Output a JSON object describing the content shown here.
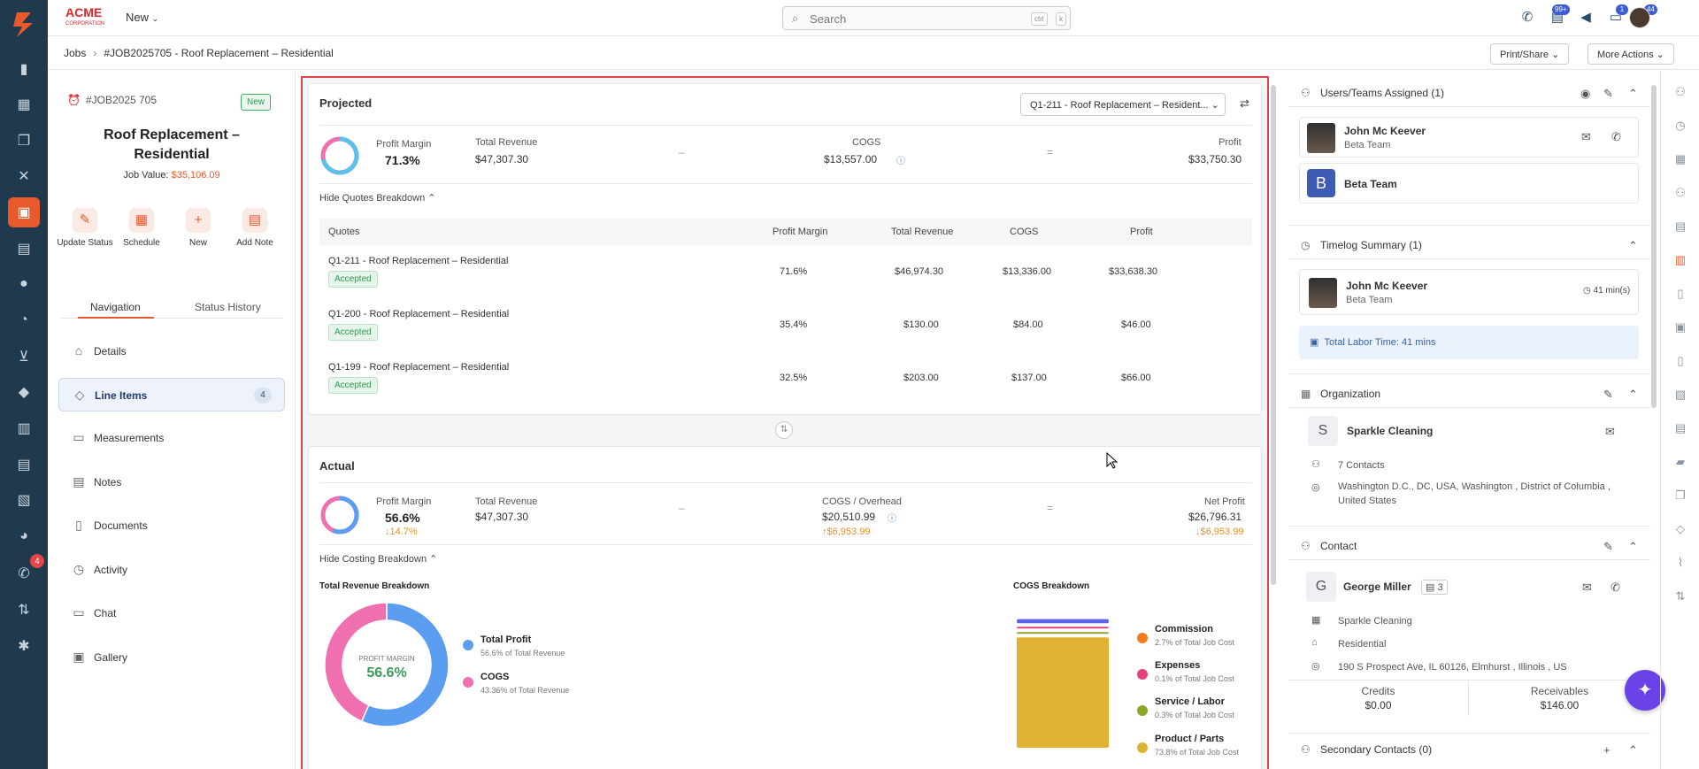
{
  "brand": {
    "name": "ACME",
    "sub": "CORPORATION"
  },
  "topbar": {
    "new_label": "New",
    "search_placeholder": "Search",
    "kbd1": "ctrl",
    "kbd2": "k",
    "badges": {
      "inbox": "99+",
      "messages": "1",
      "notifications": "44"
    }
  },
  "rail": {
    "badge": "4"
  },
  "breadcrumb": {
    "root": "Jobs",
    "current": "#JOB2025705 - Roof Replacement – Residential"
  },
  "header_buttons": {
    "print": "Print/Share",
    "more": "More Actions"
  },
  "job": {
    "number": "#JOB2025 705",
    "status": "New",
    "title": "Roof Replacement – Residential",
    "value_label": "Job Value:",
    "value": "$35,106.09",
    "actions": [
      {
        "label": "Update Status",
        "icon": "pencil-icon"
      },
      {
        "label": "Schedule",
        "icon": "calendar-icon"
      },
      {
        "label": "New",
        "icon": "plus-icon"
      },
      {
        "label": "Add Note",
        "icon": "note-icon"
      }
    ]
  },
  "tabs": {
    "navigation": "Navigation",
    "history": "Status History"
  },
  "nav": [
    {
      "label": "Details",
      "icon": "home-icon"
    },
    {
      "label": "Line Items",
      "icon": "tag-icon",
      "count": "4"
    },
    {
      "label": "Measurements",
      "icon": "ruler-icon"
    },
    {
      "label": "Notes",
      "icon": "notes-icon"
    },
    {
      "label": "Documents",
      "icon": "documents-icon"
    },
    {
      "label": "Activity",
      "icon": "activity-icon"
    },
    {
      "label": "Chat",
      "icon": "chat-icon"
    },
    {
      "label": "Gallery",
      "icon": "gallery-icon"
    }
  ],
  "projected": {
    "title": "Projected",
    "quote_select": "Q1-211 - Roof Replacement – Resident...",
    "profit_margin_label": "Profit Margin",
    "profit_margin": "71.3%",
    "revenue_label": "Total Revenue",
    "revenue": "$47,307.30",
    "minus": "–",
    "cogs_label": "COGS",
    "cogs": "$13,557.00",
    "equals": "=",
    "profit_label": "Profit",
    "profit": "$33,750.30",
    "hide_link": "Hide Quotes Breakdown",
    "table_headers": [
      "Quotes",
      "Profit Margin",
      "Total Revenue",
      "COGS",
      "Profit"
    ],
    "rows": [
      {
        "name": "Q1-211 - Roof Replacement – Residential",
        "status": "Accepted",
        "margin": "71.6%",
        "revenue": "$46,974.30",
        "cogs": "$13,336.00",
        "profit": "$33,638.30"
      },
      {
        "name": "Q1-200 - Roof Replacement – Residential",
        "status": "Accepted",
        "margin": "35.4%",
        "revenue": "$130.00",
        "cogs": "$84.00",
        "profit": "$46.00"
      },
      {
        "name": "Q1-199 - Roof Replacement – Residential",
        "status": "Accepted",
        "margin": "32.5%",
        "revenue": "$203.00",
        "cogs": "$137.00",
        "profit": "$66.00"
      }
    ]
  },
  "actual": {
    "title": "Actual",
    "profit_margin_label": "Profit Margin",
    "profit_margin": "56.6%",
    "margin_delta": "↓14.7%",
    "revenue_label": "Total Revenue",
    "revenue": "$47,307.30",
    "minus": "–",
    "cogs_label": "COGS / Overhead",
    "cogs": "$20,510.99",
    "cogs_delta": "↑$6,953.99",
    "equals": "=",
    "profit_label": "Net Profit",
    "profit": "$26,796.31",
    "profit_delta": "↓$6,953.99",
    "hide_link": "Hide Costing Breakdown",
    "revenue_chart_title": "Total Revenue Breakdown",
    "cogs_chart_title": "COGS Breakdown",
    "donut_label": "PROFIT MARGIN",
    "donut_value": "56.6%"
  },
  "chart_data": [
    {
      "type": "pie",
      "title": "Total Revenue Breakdown",
      "categories": [
        "Total Profit",
        "COGS"
      ],
      "values": [
        56.6,
        43.36
      ],
      "labels": [
        "56.6% of Total Revenue",
        "43.36% of Total Revenue"
      ],
      "colors": [
        "#5b9df0",
        "#f06fae"
      ]
    },
    {
      "type": "bar",
      "title": "COGS Breakdown",
      "categories": [
        "Commission",
        "Expenses",
        "Service / Labor",
        "Product / Parts"
      ],
      "values": [
        2.7,
        0.1,
        0.3,
        73.8
      ],
      "labels": [
        "2.7% of Total Job Cost",
        "0.1% of Total Job Cost",
        "0.3% of Total Job Cost",
        "73.8% of Total Job Cost"
      ],
      "colors": [
        "#f47c20",
        "#e8407a",
        "#8aa82a",
        "#e0b232"
      ]
    }
  ],
  "right": {
    "users": {
      "title": "Users/Teams Assigned (1)",
      "person_name": "John Mc Keever",
      "person_team": "Beta Team",
      "team_initial": "B",
      "team_name": "Beta Team"
    },
    "timelog": {
      "title": "Timelog Summary (1)",
      "person_name": "John Mc Keever",
      "person_team": "Beta Team",
      "duration": "41 min(s)",
      "total": "Total Labor Time: 41 mins"
    },
    "org": {
      "title": "Organization",
      "initial": "S",
      "name": "Sparkle Cleaning",
      "contacts": "7 Contacts",
      "address_line1": "Washington D.C., DC, USA, Washington , District of Columbia ,",
      "address_line2": "United States"
    },
    "contact": {
      "title": "Contact",
      "initial": "G",
      "name": "George Miller",
      "doc_count": "3",
      "company": "Sparkle Cleaning",
      "type": "Residential",
      "address": "190 S Prospect Ave, IL 60126, Elmhurst , Illinois , US",
      "credits_label": "Credits",
      "credits": "$0.00",
      "receivables_label": "Receivables",
      "receivables": "$146.00"
    },
    "secondary": {
      "title": "Secondary Contacts (0)"
    }
  }
}
